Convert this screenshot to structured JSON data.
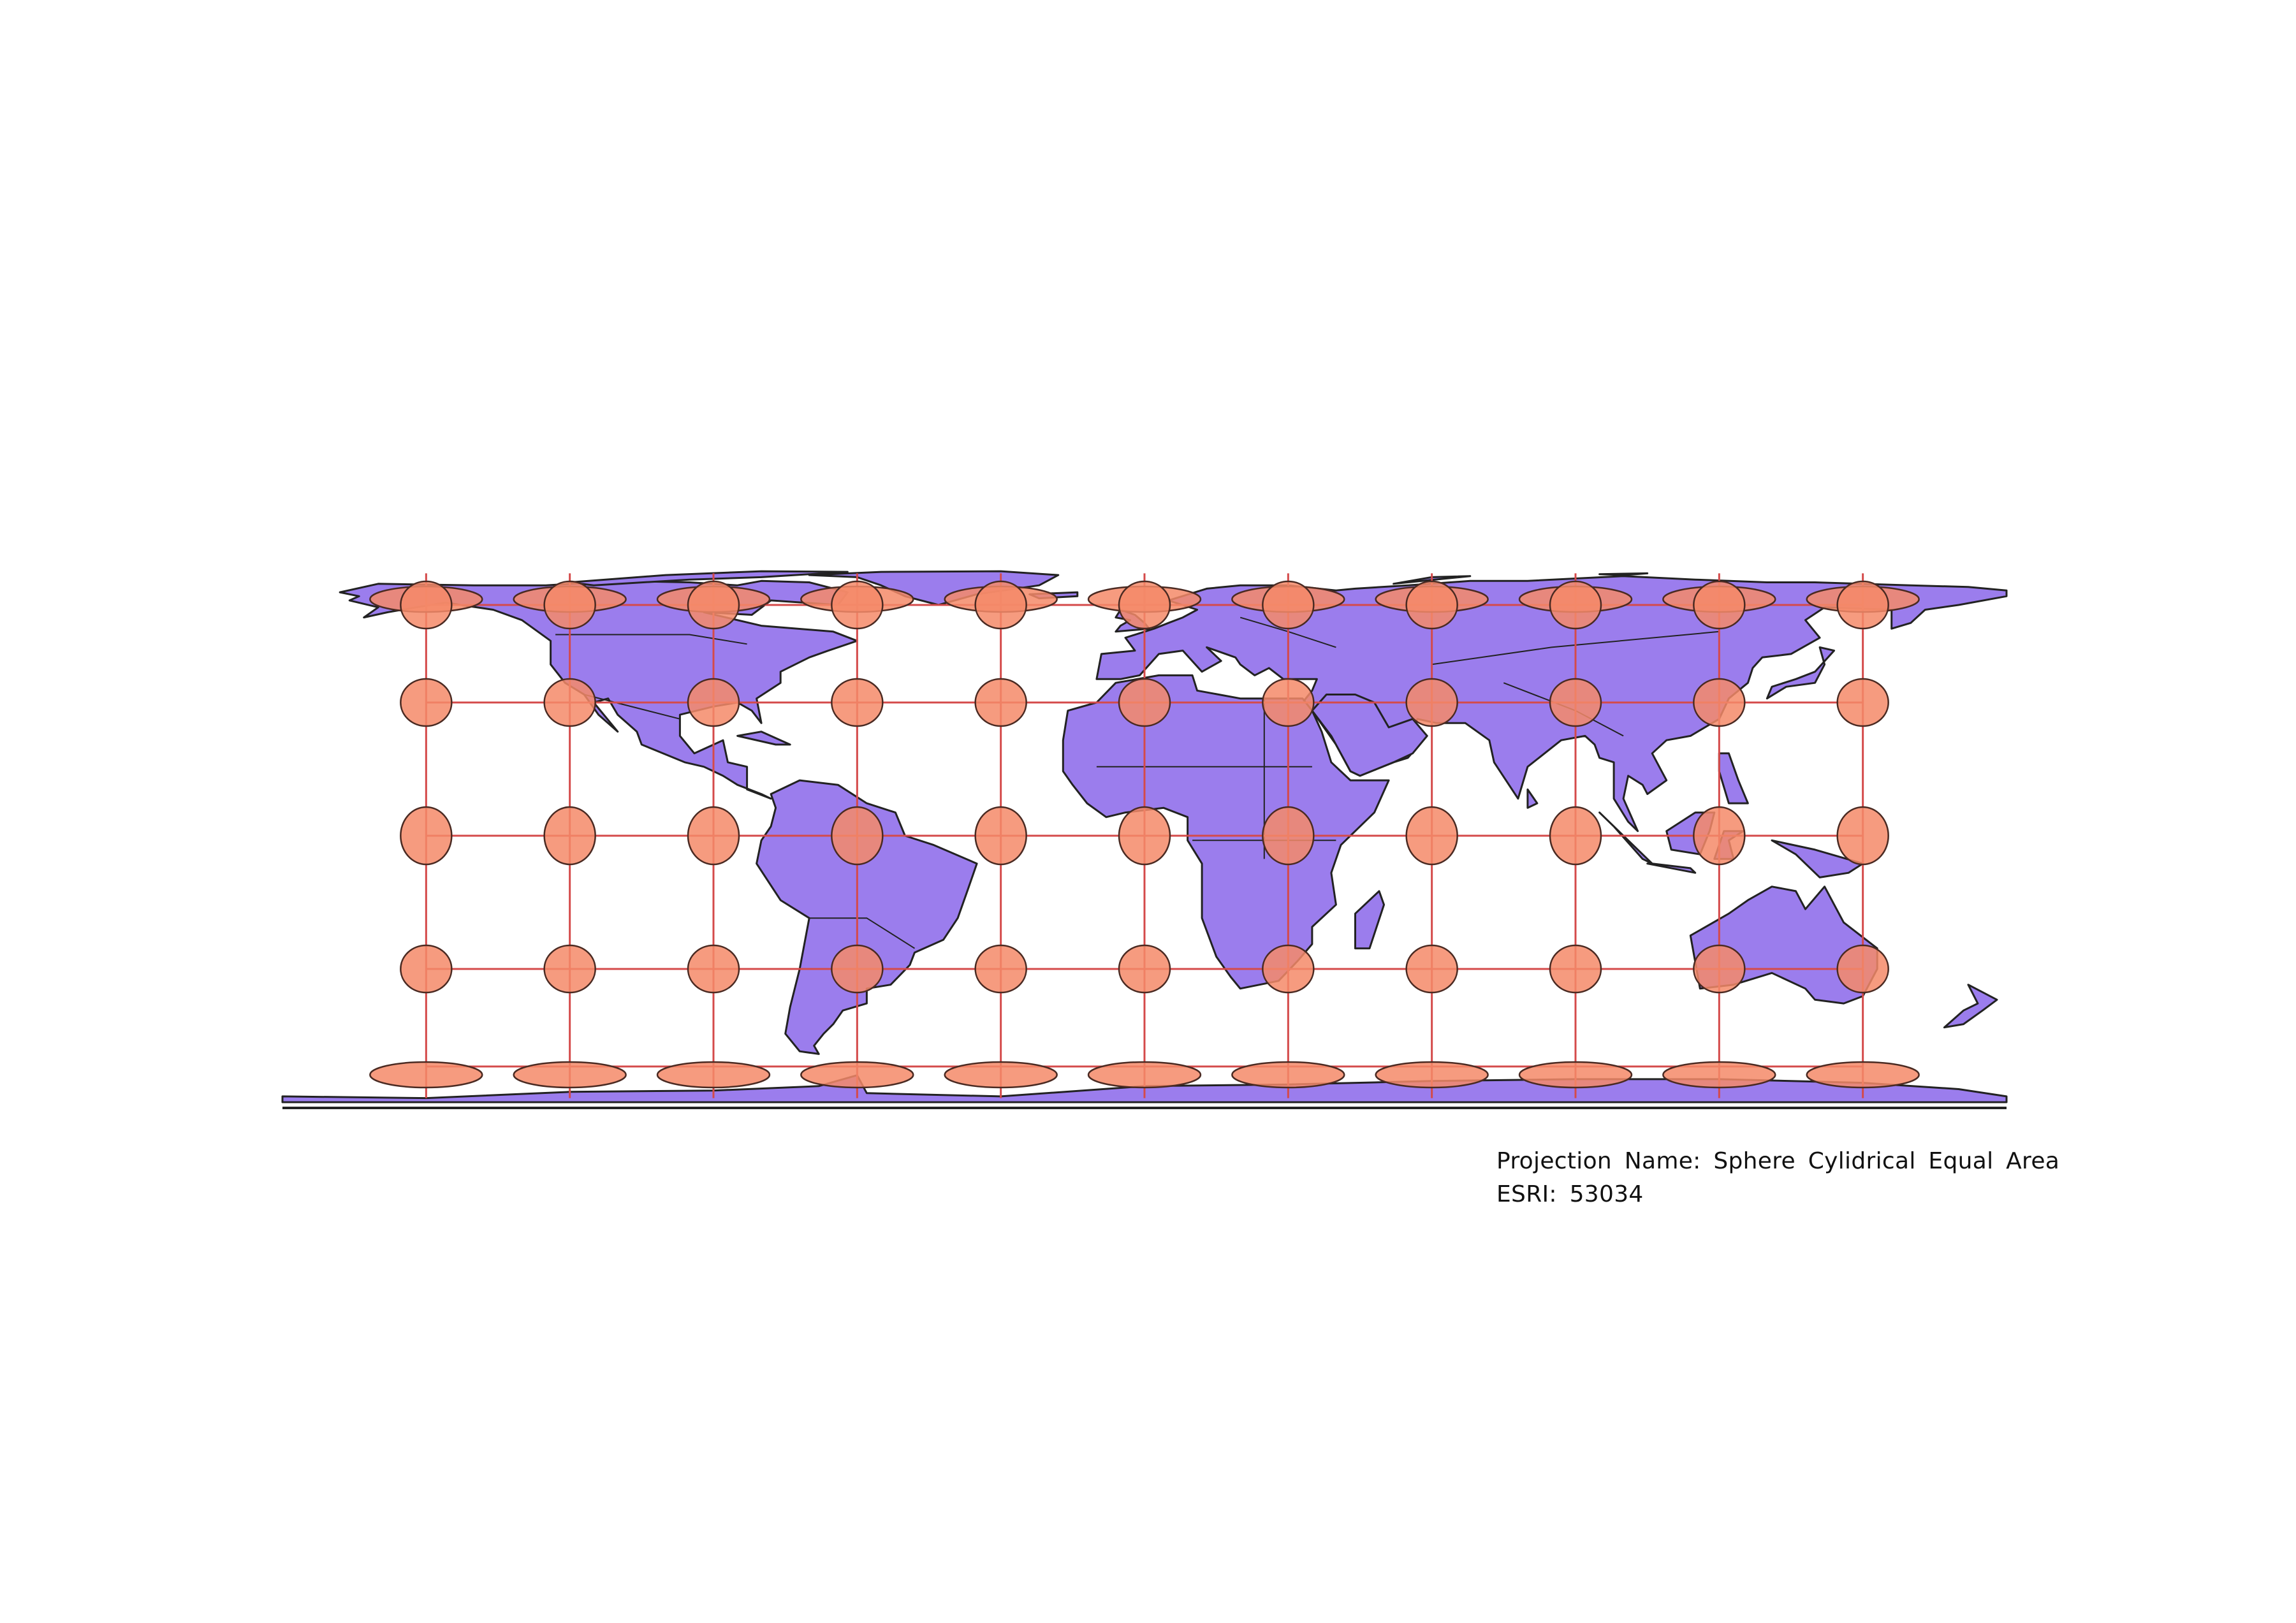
{
  "map": {
    "projection_name_line": "Projection Name: Sphere Cylidrical Equal Area",
    "esri_line": "ESRI: 53034",
    "land_color": "#9b7ded",
    "border_color": "#222222",
    "ellipse_fill": "#f48a68",
    "ellipse_stroke": "#4a2a22",
    "graticule_color": "#d44a4a",
    "graticule_longitudes": [
      -150,
      -120,
      -90,
      -60,
      -30,
      0,
      30,
      60,
      90,
      120,
      150
    ],
    "graticule_latitudes": [
      60,
      30,
      0,
      -30,
      -60
    ],
    "indicatrix_rows": [
      {
        "lat": 80,
        "shape": "wide"
      },
      {
        "lat": 60,
        "shape": "round"
      },
      {
        "lat": 30,
        "shape": "round"
      },
      {
        "lat": 0,
        "shape": "tall"
      },
      {
        "lat": -30,
        "shape": "round"
      },
      {
        "lat": -80,
        "shape": "wide"
      }
    ]
  }
}
